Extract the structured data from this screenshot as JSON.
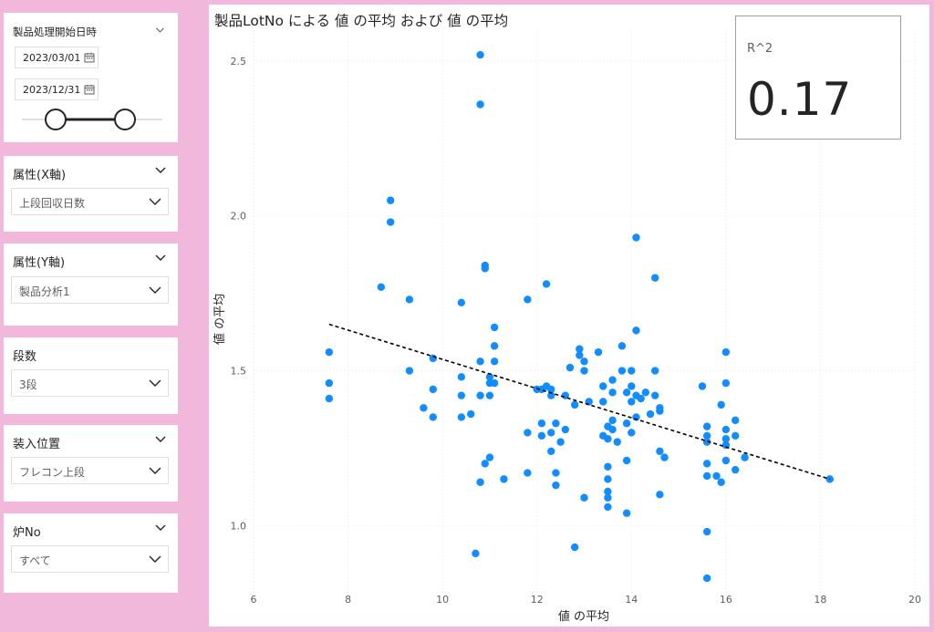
{
  "date_slicer": {
    "title": "製品処理開始日時",
    "start": "2023/03/01",
    "end": "2023/12/31"
  },
  "x_attr_slicer": {
    "title": "属性(X軸)",
    "value": "上段回収日数"
  },
  "y_attr_slicer": {
    "title": "属性(Y軸)",
    "value": "製品分析1"
  },
  "stage_slicer": {
    "title": "段数",
    "value": "3段"
  },
  "position_slicer": {
    "title": "装入位置",
    "value": "フレコン上段"
  },
  "furnace_slicer": {
    "title": "炉No",
    "value": "すべて"
  },
  "kpi": {
    "label": "R^2",
    "value": "0.17"
  },
  "colors": {
    "background": "#f2b8dc",
    "point": "#118dff",
    "trend": "#000000"
  },
  "chart_data": {
    "type": "scatter",
    "title": "製品LotNo による 値 の平均 および 値 の平均",
    "xlabel": "値 の平均",
    "ylabel": "値 の平均",
    "xlim": [
      6,
      20
    ],
    "ylim": [
      0.78,
      2.6
    ],
    "xticks": [
      6,
      8,
      10,
      12,
      14,
      16,
      18,
      20
    ],
    "yticks": [
      1.0,
      1.5,
      2.0,
      2.5
    ],
    "ytick_labels": [
      "1.0",
      "1.5",
      "2.0",
      "2.5"
    ],
    "trendline": {
      "x": [
        7.6,
        18.2
      ],
      "y": [
        1.65,
        1.15
      ]
    },
    "points": [
      [
        7.6,
        1.56
      ],
      [
        7.6,
        1.46
      ],
      [
        7.6,
        1.41
      ],
      [
        8.7,
        1.77
      ],
      [
        8.9,
        2.05
      ],
      [
        8.9,
        1.98
      ],
      [
        9.3,
        1.73
      ],
      [
        9.3,
        1.5
      ],
      [
        9.6,
        1.38
      ],
      [
        9.8,
        1.54
      ],
      [
        9.8,
        1.44
      ],
      [
        9.8,
        1.35
      ],
      [
        10.4,
        1.72
      ],
      [
        10.4,
        1.48
      ],
      [
        10.4,
        1.42
      ],
      [
        10.4,
        1.35
      ],
      [
        10.6,
        1.36
      ],
      [
        10.7,
        0.91
      ],
      [
        10.8,
        2.52
      ],
      [
        10.8,
        2.36
      ],
      [
        10.8,
        1.53
      ],
      [
        10.8,
        1.42
      ],
      [
        10.8,
        1.14
      ],
      [
        10.9,
        1.84
      ],
      [
        10.9,
        1.83
      ],
      [
        10.9,
        1.2
      ],
      [
        11.0,
        1.48
      ],
      [
        11.0,
        1.46
      ],
      [
        11.0,
        1.42
      ],
      [
        11.0,
        1.22
      ],
      [
        11.1,
        1.64
      ],
      [
        11.1,
        1.58
      ],
      [
        11.1,
        1.53
      ],
      [
        11.1,
        1.46
      ],
      [
        11.3,
        1.15
      ],
      [
        11.8,
        1.73
      ],
      [
        11.8,
        1.3
      ],
      [
        11.8,
        1.17
      ],
      [
        12.0,
        1.44
      ],
      [
        12.1,
        1.44
      ],
      [
        12.1,
        1.33
      ],
      [
        12.1,
        1.29
      ],
      [
        12.2,
        1.78
      ],
      [
        12.2,
        1.45
      ],
      [
        12.3,
        1.42
      ],
      [
        12.3,
        1.44
      ],
      [
        12.3,
        1.3
      ],
      [
        12.3,
        1.24
      ],
      [
        12.4,
        1.17
      ],
      [
        12.4,
        1.13
      ],
      [
        12.4,
        1.33
      ],
      [
        12.5,
        1.27
      ],
      [
        12.6,
        1.31
      ],
      [
        12.6,
        1.42
      ],
      [
        12.7,
        1.51
      ],
      [
        12.8,
        0.93
      ],
      [
        12.8,
        1.39
      ],
      [
        12.9,
        1.57
      ],
      [
        12.9,
        1.55
      ],
      [
        13.0,
        1.53
      ],
      [
        13.0,
        1.5
      ],
      [
        13.0,
        1.09
      ],
      [
        13.1,
        1.4
      ],
      [
        13.3,
        1.56
      ],
      [
        13.4,
        1.45
      ],
      [
        13.4,
        1.4
      ],
      [
        13.4,
        1.29
      ],
      [
        13.5,
        1.19
      ],
      [
        13.5,
        1.15
      ],
      [
        13.5,
        1.11
      ],
      [
        13.5,
        1.09
      ],
      [
        13.5,
        1.06
      ],
      [
        13.5,
        1.32
      ],
      [
        13.5,
        1.28
      ],
      [
        13.6,
        1.47
      ],
      [
        13.6,
        1.43
      ],
      [
        13.6,
        1.34
      ],
      [
        13.6,
        1.31
      ],
      [
        13.7,
        1.27
      ],
      [
        13.8,
        1.58
      ],
      [
        13.8,
        1.5
      ],
      [
        13.9,
        1.43
      ],
      [
        13.9,
        1.33
      ],
      [
        13.9,
        1.21
      ],
      [
        13.9,
        1.04
      ],
      [
        14.0,
        1.5
      ],
      [
        14.0,
        1.45
      ],
      [
        14.0,
        1.4
      ],
      [
        14.0,
        1.3
      ],
      [
        14.1,
        1.93
      ],
      [
        14.1,
        1.63
      ],
      [
        14.1,
        1.42
      ],
      [
        14.1,
        1.35
      ],
      [
        14.2,
        1.41
      ],
      [
        14.3,
        1.43
      ],
      [
        14.4,
        1.36
      ],
      [
        14.5,
        1.8
      ],
      [
        14.5,
        1.5
      ],
      [
        14.5,
        1.42
      ],
      [
        14.6,
        1.38
      ],
      [
        14.6,
        1.37
      ],
      [
        14.6,
        1.24
      ],
      [
        14.6,
        1.1
      ],
      [
        14.7,
        1.22
      ],
      [
        15.5,
        1.45
      ],
      [
        15.6,
        1.32
      ],
      [
        15.6,
        1.29
      ],
      [
        15.6,
        1.27
      ],
      [
        15.6,
        1.2
      ],
      [
        15.6,
        1.16
      ],
      [
        15.6,
        0.98
      ],
      [
        15.6,
        0.83
      ],
      [
        15.8,
        1.16
      ],
      [
        15.9,
        1.39
      ],
      [
        15.9,
        1.14
      ],
      [
        16.0,
        1.56
      ],
      [
        16.0,
        1.46
      ],
      [
        16.0,
        1.31
      ],
      [
        16.0,
        1.28
      ],
      [
        16.0,
        1.26
      ],
      [
        16.0,
        1.21
      ],
      [
        16.2,
        1.34
      ],
      [
        16.2,
        1.29
      ],
      [
        16.2,
        1.18
      ],
      [
        16.4,
        1.22
      ],
      [
        18.2,
        1.15
      ]
    ]
  }
}
